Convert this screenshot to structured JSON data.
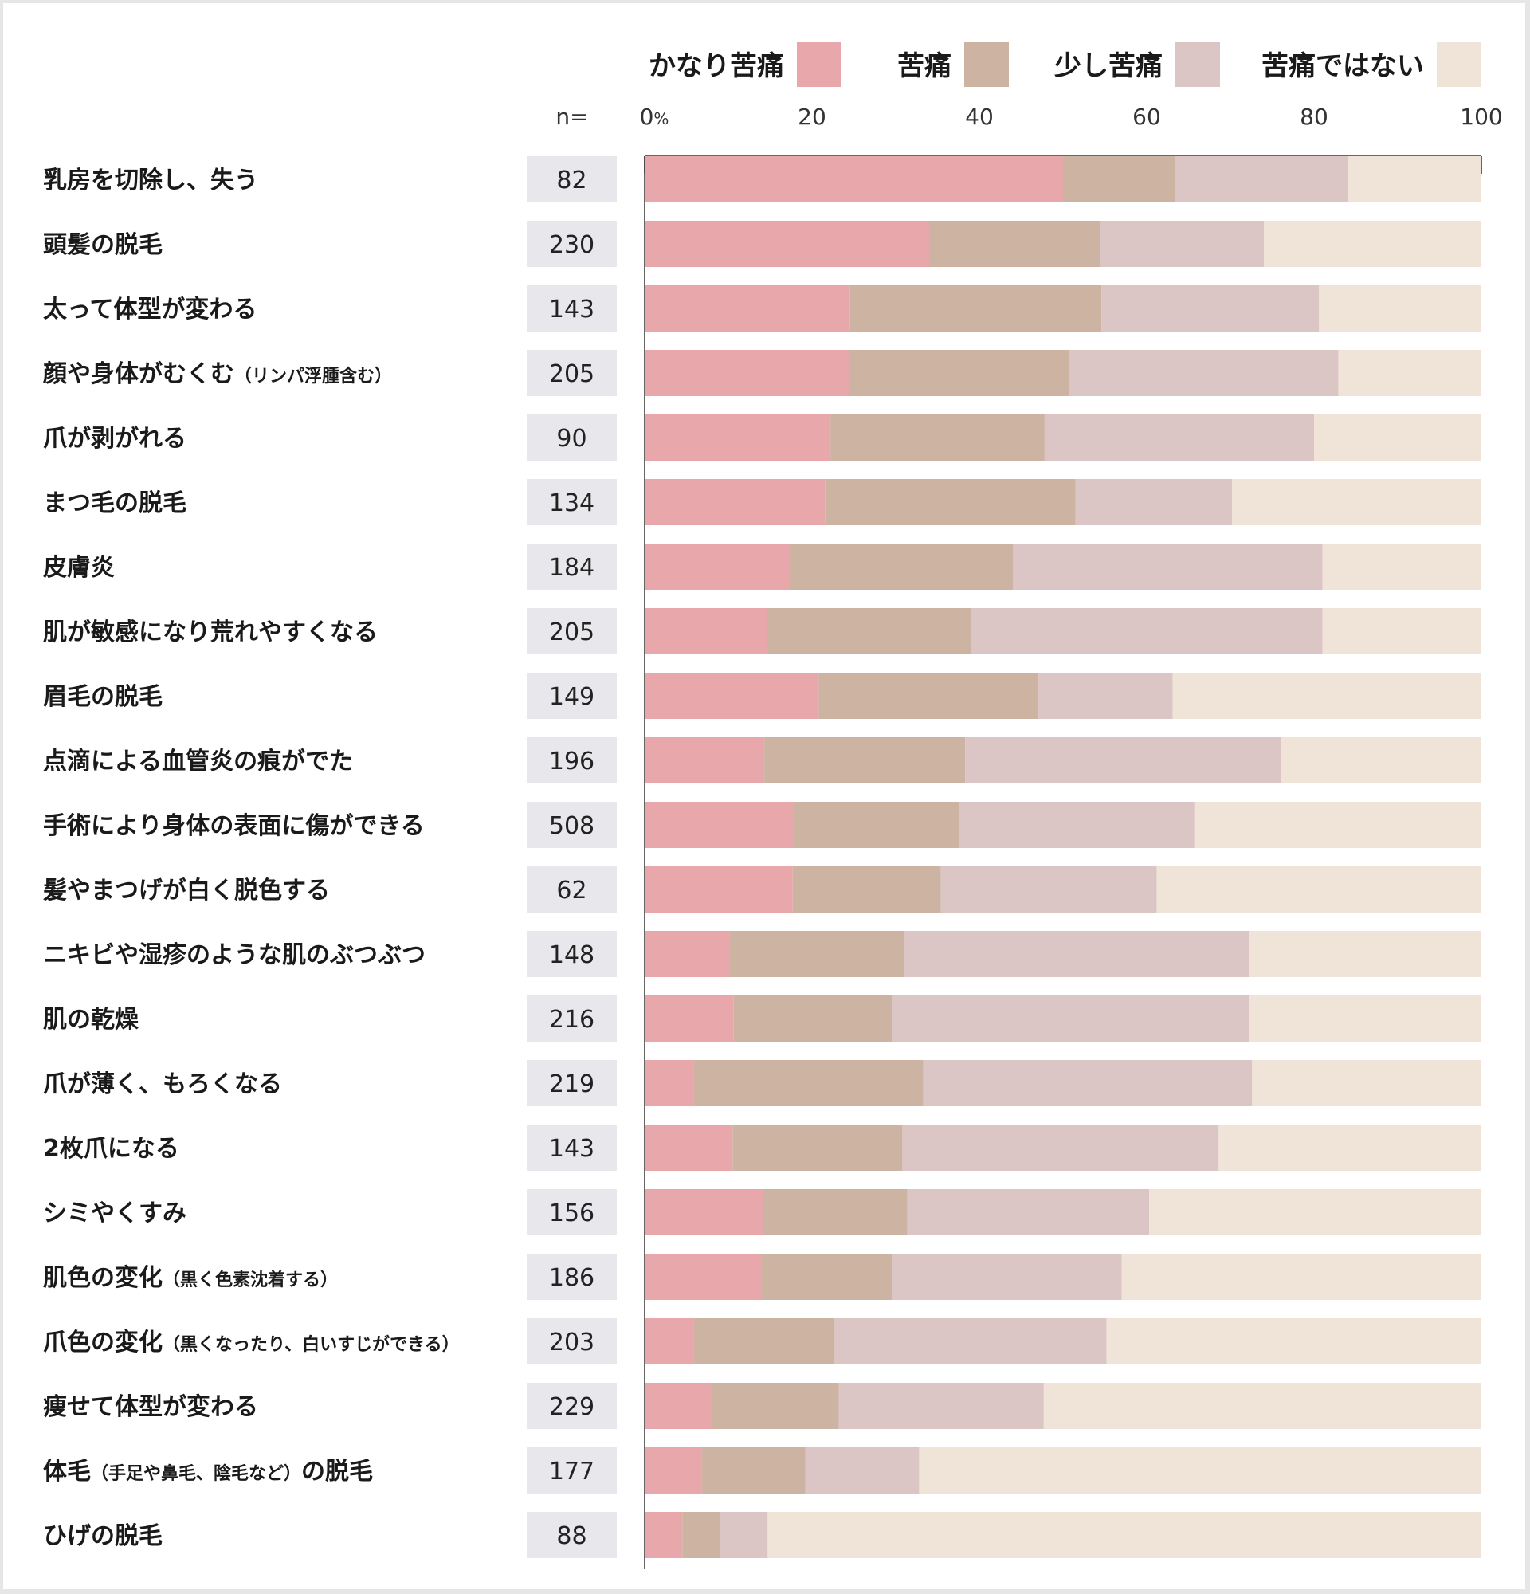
{
  "chart_data": {
    "type": "bar",
    "stacked": true,
    "orientation": "horizontal",
    "n_header": "n=",
    "xlim": [
      0,
      100
    ],
    "x_ticks": [
      "0%",
      "20",
      "40",
      "60",
      "80",
      "100"
    ],
    "legend_position": "top",
    "series": [
      {
        "name": "かなり苦痛",
        "color": "#e8a7aa"
      },
      {
        "name": "苦痛",
        "color": "#cdb3a2"
      },
      {
        "name": "少し苦痛",
        "color": "#dcc5c5"
      },
      {
        "name": "苦痛ではない",
        "color": "#f0e3d7"
      }
    ],
    "rows": [
      {
        "label": "乳房を切除し、失う",
        "sub": "",
        "n": "82",
        "values": [
          50,
          13.4,
          20.7,
          15.9
        ]
      },
      {
        "label": "頭髪の脱毛",
        "sub": "",
        "n": "230",
        "values": [
          34,
          20.4,
          19.6,
          26
        ]
      },
      {
        "label": "太って体型が変わる",
        "sub": "",
        "n": "143",
        "values": [
          24.5,
          30.1,
          26,
          19.4
        ]
      },
      {
        "label": "顔や身体がむくむ",
        "sub": "（リンパ浮腫含む）",
        "n": "205",
        "values": [
          24.4,
          26.3,
          32.2,
          17.1
        ]
      },
      {
        "label": "爪が剥がれる",
        "sub": "",
        "n": "90",
        "values": [
          22.2,
          25.6,
          32.2,
          20
        ]
      },
      {
        "label": "まつ毛の脱毛",
        "sub": "",
        "n": "134",
        "values": [
          21.6,
          29.9,
          18.7,
          29.8
        ]
      },
      {
        "label": "皮膚炎",
        "sub": "",
        "n": "184",
        "values": [
          17.4,
          26.6,
          37,
          19
        ]
      },
      {
        "label": "肌が敏感になり荒れやすくなる",
        "sub": "",
        "n": "205",
        "values": [
          14.6,
          24.4,
          42,
          19
        ]
      },
      {
        "label": "眉毛の脱毛",
        "sub": "",
        "n": "149",
        "values": [
          20.8,
          26.2,
          16.1,
          36.9
        ]
      },
      {
        "label": "点滴による血管炎の痕がでた",
        "sub": "",
        "n": "196",
        "values": [
          14.3,
          24,
          37.8,
          23.9
        ]
      },
      {
        "label": "手術により身体の表面に傷ができる",
        "sub": "",
        "n": "508",
        "values": [
          17.9,
          19.7,
          28.1,
          34.3
        ]
      },
      {
        "label": "髪やまつげが白く脱色する",
        "sub": "",
        "n": "62",
        "values": [
          17.7,
          17.7,
          25.8,
          38.8
        ]
      },
      {
        "label": "ニキビや湿疹のような肌のぶつぶつ",
        "sub": "",
        "n": "148",
        "values": [
          10.1,
          20.9,
          41.2,
          27.8
        ]
      },
      {
        "label": "肌の乾燥",
        "sub": "",
        "n": "216",
        "values": [
          10.6,
          19,
          42.6,
          27.8
        ]
      },
      {
        "label": "爪が薄く、もろくなる",
        "sub": "",
        "n": "219",
        "values": [
          5.9,
          27.4,
          39.3,
          27.4
        ]
      },
      {
        "label": "2枚爪になる",
        "sub": "",
        "n": "143",
        "values": [
          10.5,
          20.3,
          37.8,
          31.4
        ]
      },
      {
        "label": "シミやくすみ",
        "sub": "",
        "n": "156",
        "values": [
          14.1,
          17.3,
          28.9,
          39.7
        ]
      },
      {
        "label": "肌色の変化",
        "sub": "（黒く色素沈着する）",
        "n": "186",
        "values": [
          14,
          15.6,
          27.4,
          43
        ]
      },
      {
        "label": "爪色の変化",
        "sub": "（黒くなったり、白いすじができる）",
        "n": "203",
        "values": [
          5.9,
          16.8,
          32.5,
          44.8
        ]
      },
      {
        "label": "痩せて体型が変わる",
        "sub": "",
        "n": "229",
        "values": [
          7.9,
          15.3,
          24.5,
          52.3
        ]
      },
      {
        "label": "体毛",
        "sub": "（手足や鼻毛、陰毛など）",
        "tail": "の脱毛",
        "n": "177",
        "values": [
          6.8,
          12.4,
          13.6,
          67.2
        ]
      },
      {
        "label": "ひげの脱毛",
        "sub": "",
        "n": "88",
        "values": [
          4.5,
          4.5,
          5.7,
          85.3
        ]
      }
    ]
  }
}
